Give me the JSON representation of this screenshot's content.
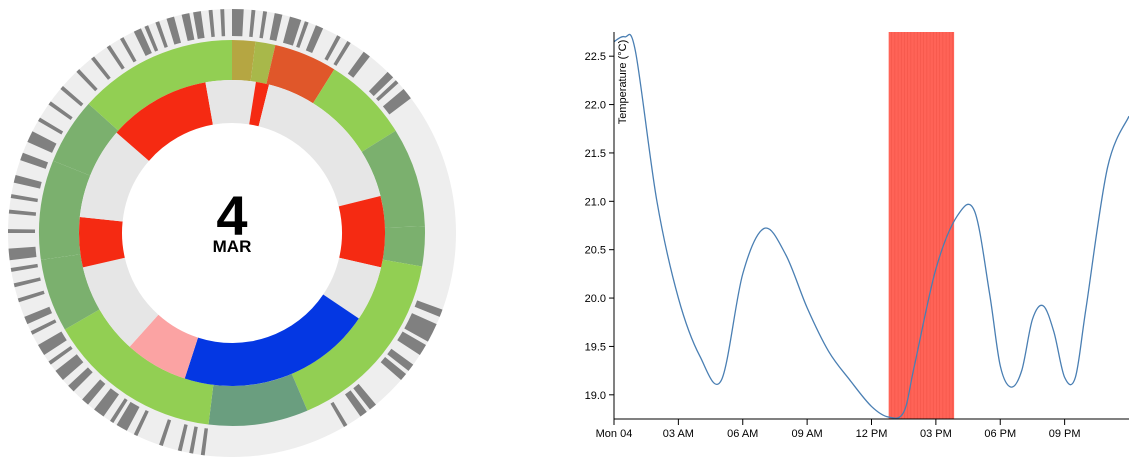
{
  "date_badge": {
    "day": "4",
    "month": "MAR"
  },
  "chart_data": [
    {
      "type": "radial-activity",
      "outer_ring": {
        "base_color": "#eeeeee",
        "mark_color": "#808080",
        "marked_spans_deg": [
          [
            0,
            3
          ],
          [
            5,
            6
          ],
          [
            8,
            9
          ],
          [
            11,
            13
          ],
          [
            15,
            18
          ],
          [
            19,
            20
          ],
          [
            22,
            24
          ],
          [
            28,
            29
          ],
          [
            31,
            32
          ],
          [
            36,
            38
          ],
          [
            44,
            46
          ],
          [
            47,
            48
          ],
          [
            50,
            53
          ],
          [
            110,
            112
          ],
          [
            114,
            119
          ],
          [
            120,
            123
          ],
          [
            126,
            128
          ],
          [
            129,
            131
          ],
          [
            140,
            142
          ],
          [
            143,
            145
          ],
          [
            149,
            150
          ],
          [
            187,
            188
          ],
          [
            190,
            191
          ],
          [
            193,
            194
          ],
          [
            198,
            199
          ],
          [
            205,
            206
          ],
          [
            208,
            211
          ],
          [
            212,
            213
          ],
          [
            215,
            218
          ],
          [
            220,
            222
          ],
          [
            225,
            227
          ],
          [
            229,
            232
          ],
          [
            234,
            235
          ],
          [
            237,
            240
          ],
          [
            243,
            244
          ],
          [
            246,
            248
          ],
          [
            252,
            253
          ],
          [
            256,
            257
          ],
          [
            260,
            261
          ],
          [
            263,
            266
          ],
          [
            270,
            271
          ],
          [
            275,
            276
          ],
          [
            279,
            280
          ],
          [
            283,
            285
          ],
          [
            289,
            291
          ],
          [
            294,
            297
          ],
          [
            300,
            301
          ],
          [
            305,
            306
          ],
          [
            310,
            311
          ],
          [
            316,
            317
          ],
          [
            321,
            322
          ],
          [
            326,
            327
          ],
          [
            330,
            331
          ],
          [
            334,
            336
          ],
          [
            337,
            338
          ],
          [
            340,
            341
          ],
          [
            343,
            345
          ],
          [
            347,
            349
          ],
          [
            350,
            352
          ],
          [
            354,
            355
          ],
          [
            357,
            358
          ]
        ]
      },
      "middle_ring": [
        {
          "start": 0,
          "end": 7,
          "color": "#b5a642"
        },
        {
          "start": 7,
          "end": 13,
          "color": "#a8b84a"
        },
        {
          "start": 13,
          "end": 32,
          "color": "#e0572a"
        },
        {
          "start": 32,
          "end": 58,
          "color": "#92cf53"
        },
        {
          "start": 58,
          "end": 88,
          "color": "#7bb06e"
        },
        {
          "start": 88,
          "end": 100,
          "color": "#7bb06e"
        },
        {
          "start": 100,
          "end": 157,
          "color": "#92cf53"
        },
        {
          "start": 157,
          "end": 187,
          "color": "#6a9e7f"
        },
        {
          "start": 187,
          "end": 240,
          "color": "#92cf53"
        },
        {
          "start": 240,
          "end": 262,
          "color": "#7bb06e"
        },
        {
          "start": 262,
          "end": 292,
          "color": "#7bb06e"
        },
        {
          "start": 292,
          "end": 312,
          "color": "#7bb06e"
        },
        {
          "start": 312,
          "end": 360,
          "color": "#92cf53"
        }
      ],
      "inner_ring": [
        {
          "start": 0,
          "end": 9,
          "color": "#e6e6e6"
        },
        {
          "start": 9,
          "end": 14,
          "color": "#f52a12"
        },
        {
          "start": 14,
          "end": 76,
          "color": "#e6e6e6"
        },
        {
          "start": 76,
          "end": 103,
          "color": "#f52a12"
        },
        {
          "start": 103,
          "end": 124,
          "color": "#e6e6e6"
        },
        {
          "start": 124,
          "end": 198,
          "color": "#0437e3"
        },
        {
          "start": 198,
          "end": 222,
          "color": "#fba3a3"
        },
        {
          "start": 222,
          "end": 257,
          "color": "#e6e6e6"
        },
        {
          "start": 257,
          "end": 276,
          "color": "#f52a12"
        },
        {
          "start": 276,
          "end": 311,
          "color": "#e6e6e6"
        },
        {
          "start": 311,
          "end": 350,
          "color": "#f52a12"
        },
        {
          "start": 350,
          "end": 360,
          "color": "#e6e6e6"
        }
      ]
    },
    {
      "type": "line",
      "ylabel": "Temperature (°C)",
      "x_tick_labels": [
        "Mon 04",
        "03 AM",
        "06 AM",
        "09 AM",
        "12 PM",
        "03 PM",
        "06 PM",
        "09 PM"
      ],
      "x_ticks_hours": [
        0,
        3,
        6,
        9,
        12,
        15,
        18,
        21
      ],
      "y_ticks": [
        19.0,
        19.5,
        20.0,
        20.5,
        21.0,
        21.5,
        22.0,
        22.5
      ],
      "y_tick_labels": [
        "19.0",
        "19.5",
        "20.0",
        "20.5",
        "21.0",
        "21.5",
        "22.0",
        "22.5"
      ],
      "xlim_hours": [
        0,
        24
      ],
      "ylim": [
        18.75,
        22.75
      ],
      "series": [
        {
          "color": "#4a7fb3",
          "x_hours": [
            0,
            0.5,
            1,
            2,
            3,
            4,
            5,
            6,
            7,
            8,
            9,
            10,
            11,
            12,
            12.8,
            13.5,
            14,
            15,
            16,
            16.8,
            17.5,
            18,
            18.5,
            19,
            19.5,
            20,
            20.5,
            21,
            21.5,
            22,
            23,
            24
          ],
          "y": [
            22.65,
            22.7,
            22.55,
            21.0,
            20.0,
            19.4,
            19.15,
            20.25,
            20.72,
            20.45,
            19.9,
            19.45,
            19.15,
            18.88,
            18.77,
            18.82,
            19.3,
            20.3,
            20.85,
            20.9,
            20.05,
            19.3,
            19.08,
            19.25,
            19.78,
            19.92,
            19.65,
            19.18,
            19.18,
            19.9,
            21.35,
            21.88
          ]
        }
      ],
      "highlight": {
        "x_start_hours": 12.8,
        "x_end_hours": 15.85,
        "color": "#ff6357"
      },
      "grid": false
    }
  ]
}
